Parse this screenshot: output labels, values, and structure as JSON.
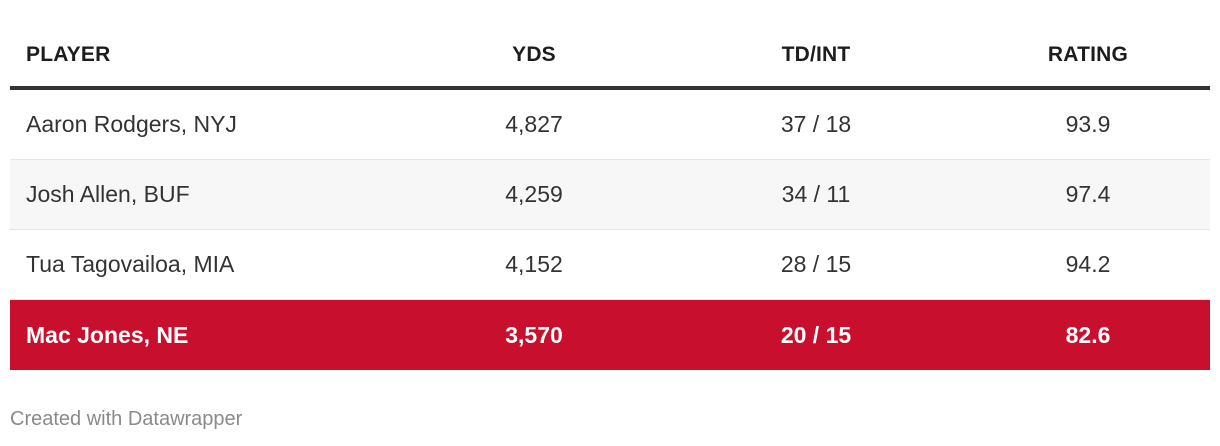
{
  "chart_data": {
    "type": "table",
    "columns": [
      "PLAYER",
      "YDS",
      "TD/INT",
      "RATING"
    ],
    "rows": [
      {
        "player": "Aaron Rodgers, NYJ",
        "yds": "4,827",
        "td_int": "37 / 18",
        "rating": "93.9",
        "highlight": false
      },
      {
        "player": "Josh Allen, BUF",
        "yds": "4,259",
        "td_int": "34 / 11",
        "rating": "97.4",
        "highlight": false
      },
      {
        "player": "Tua Tagovailoa, MIA",
        "yds": "4,152",
        "td_int": "28 / 15",
        "rating": "94.2",
        "highlight": false
      },
      {
        "player": "Mac Jones, NE",
        "yds": "3,570",
        "td_int": "20 / 15",
        "rating": "82.6",
        "highlight": true
      }
    ],
    "highlight_color": "#c8102e"
  },
  "footer": {
    "credit": "Created with Datawrapper"
  }
}
